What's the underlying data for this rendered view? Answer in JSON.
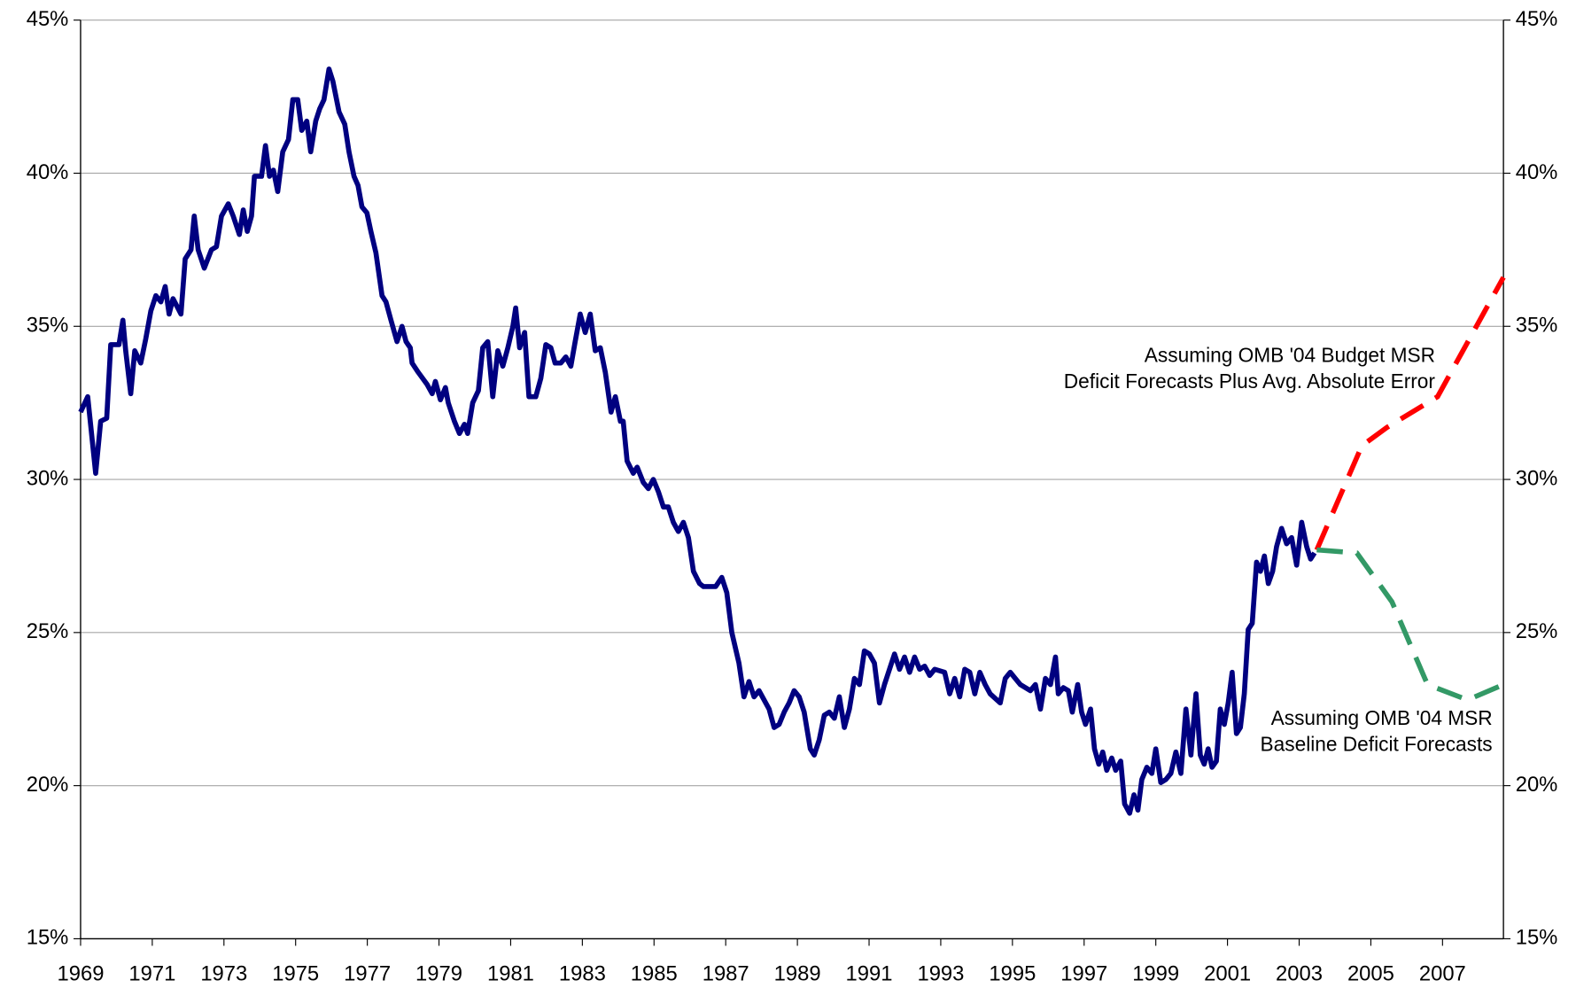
{
  "chart_data": {
    "type": "line",
    "xlim": [
      1969,
      2008.7
    ],
    "xticks": [
      1969,
      1971,
      1973,
      1975,
      1977,
      1979,
      1981,
      1983,
      1985,
      1987,
      1989,
      1991,
      1993,
      1995,
      1997,
      1999,
      2001,
      2003,
      2005,
      2007
    ],
    "ylim": [
      15,
      45
    ],
    "yticks": [
      {
        "value": 15,
        "label": "15%"
      },
      {
        "value": 20,
        "label": "20%"
      },
      {
        "value": 25,
        "label": "25%"
      },
      {
        "value": 30,
        "label": "30%"
      },
      {
        "value": 35,
        "label": "35%"
      },
      {
        "value": 40,
        "label": "40%"
      },
      {
        "value": 45,
        "label": "45%"
      }
    ],
    "y2lim": [
      15,
      45
    ],
    "y2ticks": [
      {
        "value": 15,
        "label": "15%"
      },
      {
        "value": 20,
        "label": "20%"
      },
      {
        "value": 25,
        "label": "25%"
      },
      {
        "value": 30,
        "label": "30%"
      },
      {
        "value": 35,
        "label": "35%"
      },
      {
        "value": 40,
        "label": "40%"
      },
      {
        "value": 45,
        "label": "45%"
      }
    ],
    "grid": true,
    "series": [
      {
        "color": "#000080",
        "dash": false,
        "x": [
          1969.0,
          1969.2,
          1969.42,
          1969.56,
          1969.73,
          1969.84,
          1970.07,
          1970.18,
          1970.26,
          1970.4,
          1970.51,
          1970.68,
          1970.82,
          1970.96,
          1971.1,
          1971.24,
          1971.36,
          1971.47,
          1971.58,
          1971.8,
          1971.92,
          1972.08,
          1972.17,
          1972.28,
          1972.45,
          1972.65,
          1972.79,
          1972.93,
          1973.12,
          1973.26,
          1973.43,
          1973.54,
          1973.65,
          1973.77,
          1973.85,
          1974.05,
          1974.16,
          1974.27,
          1974.38,
          1974.5,
          1974.64,
          1974.8,
          1974.92,
          1975.06,
          1975.17,
          1975.31,
          1975.42,
          1975.56,
          1975.67,
          1975.79,
          1975.93,
          1976.04,
          1976.21,
          1976.37,
          1976.49,
          1976.63,
          1976.74,
          1976.85,
          1976.99,
          1977.1,
          1977.24,
          1977.41,
          1977.52,
          1977.66,
          1977.83,
          1977.97,
          1978.08,
          1978.2,
          1978.25,
          1978.42,
          1978.67,
          1978.81,
          1978.9,
          1979.04,
          1979.18,
          1979.26,
          1979.43,
          1979.57,
          1979.71,
          1979.8,
          1979.94,
          1980.1,
          1980.22,
          1980.36,
          1980.5,
          1980.64,
          1980.78,
          1980.92,
          1981.06,
          1981.14,
          1981.25,
          1981.39,
          1981.51,
          1981.7,
          1981.84,
          1981.98,
          1982.12,
          1982.24,
          1982.4,
          1982.54,
          1982.68,
          1982.8,
          1982.94,
          1983.08,
          1983.22,
          1983.36,
          1983.5,
          1983.64,
          1983.8,
          1983.92,
          1984.06,
          1984.14,
          1984.25,
          1984.42,
          1984.53,
          1984.7,
          1984.84,
          1984.98,
          1985.12,
          1985.26,
          1985.4,
          1985.54,
          1985.68,
          1985.82,
          1985.96,
          1986.1,
          1986.27,
          1986.38,
          1986.72,
          1986.89,
          1987.03,
          1987.17,
          1987.37,
          1987.51,
          1987.65,
          1987.79,
          1987.93,
          1988.07,
          1988.21,
          1988.35,
          1988.49,
          1988.63,
          1988.77,
          1988.91,
          1989.05,
          1989.19,
          1989.36,
          1989.47,
          1989.61,
          1989.75,
          1989.89,
          1990.03,
          1990.17,
          1990.31,
          1990.45,
          1990.59,
          1990.73,
          1990.87,
          1991.01,
          1991.15,
          1991.29,
          1991.43,
          1991.57,
          1991.71,
          1991.85,
          1991.99,
          1992.13,
          1992.27,
          1992.41,
          1992.55,
          1992.69,
          1992.83,
          1993.11,
          1993.25,
          1993.39,
          1993.53,
          1993.67,
          1993.81,
          1993.95,
          1994.09,
          1994.24,
          1994.38,
          1994.66,
          1994.8,
          1994.94,
          1995.08,
          1995.22,
          1995.5,
          1995.64,
          1995.78,
          1995.92,
          1996.06,
          1996.2,
          1996.28,
          1996.42,
          1996.56,
          1996.67,
          1996.82,
          1996.93,
          1997.04,
          1997.18,
          1997.29,
          1997.41,
          1997.52,
          1997.63,
          1997.77,
          1997.88,
          1998.02,
          1998.13,
          1998.27,
          1998.39,
          1998.5,
          1998.61,
          1998.75,
          1998.89,
          1999.0,
          1999.14,
          1999.28,
          1999.42,
          1999.56,
          1999.7,
          1999.84,
          1999.98,
          2000.12,
          2000.24,
          2000.35,
          2000.46,
          2000.57,
          2000.69,
          2000.8,
          2000.91,
          2001.02,
          2001.13,
          2001.25,
          2001.36,
          2001.47,
          2001.58,
          2001.69,
          2001.81,
          2001.92,
          2002.03,
          2002.14,
          2002.26,
          2002.37,
          2002.51,
          2002.65,
          2002.79,
          2002.93,
          2003.07,
          2003.21,
          2003.32,
          2003.43
        ],
        "values": [
          32.2,
          32.7,
          30.2,
          31.9,
          32.0,
          34.4,
          34.4,
          35.2,
          34.2,
          32.8,
          34.2,
          33.8,
          34.6,
          35.5,
          36.0,
          35.8,
          36.3,
          35.4,
          35.9,
          35.4,
          37.2,
          37.5,
          38.6,
          37.5,
          36.9,
          37.5,
          37.6,
          38.6,
          39.0,
          38.6,
          38.0,
          38.8,
          38.1,
          38.6,
          39.9,
          39.9,
          40.9,
          39.9,
          40.1,
          39.4,
          40.7,
          41.1,
          42.4,
          42.4,
          41.4,
          41.7,
          40.7,
          41.7,
          42.1,
          42.4,
          43.4,
          43.0,
          42.0,
          41.6,
          40.7,
          39.9,
          39.6,
          38.9,
          38.7,
          38.1,
          37.4,
          36.0,
          35.8,
          35.2,
          34.5,
          35.0,
          34.5,
          34.3,
          33.8,
          33.5,
          33.1,
          32.8,
          33.2,
          32.6,
          33.0,
          32.5,
          31.9,
          31.5,
          31.8,
          31.5,
          32.5,
          32.9,
          34.3,
          34.5,
          32.7,
          34.2,
          33.7,
          34.3,
          35.0,
          35.6,
          34.3,
          34.8,
          32.7,
          32.7,
          33.3,
          34.4,
          34.3,
          33.8,
          33.8,
          34.0,
          33.7,
          34.5,
          35.4,
          34.8,
          35.4,
          34.2,
          34.3,
          33.5,
          32.2,
          32.7,
          31.9,
          31.9,
          30.6,
          30.2,
          30.4,
          29.9,
          29.7,
          30.0,
          29.6,
          29.1,
          29.1,
          28.6,
          28.3,
          28.6,
          28.1,
          27.0,
          26.6,
          26.5,
          26.5,
          26.8,
          26.3,
          25.0,
          24.0,
          22.9,
          23.4,
          22.9,
          23.1,
          22.8,
          22.5,
          21.9,
          22.0,
          22.4,
          22.7,
          23.1,
          22.9,
          22.4,
          21.2,
          21.0,
          21.5,
          22.3,
          22.4,
          22.2,
          22.9,
          21.9,
          22.5,
          23.5,
          23.3,
          24.4,
          24.3,
          24.0,
          22.7,
          23.3,
          23.8,
          24.3,
          23.8,
          24.2,
          23.7,
          24.2,
          23.8,
          23.9,
          23.6,
          23.8,
          23.7,
          23.0,
          23.5,
          22.9,
          23.8,
          23.7,
          23.0,
          23.7,
          23.3,
          23.0,
          22.7,
          23.5,
          23.7,
          23.5,
          23.3,
          23.1,
          23.3,
          22.5,
          23.5,
          23.3,
          24.2,
          23.0,
          23.2,
          23.1,
          22.4,
          23.3,
          22.4,
          22.0,
          22.5,
          21.2,
          20.7,
          21.1,
          20.5,
          20.9,
          20.5,
          20.8,
          19.4,
          19.1,
          19.7,
          19.2,
          20.2,
          20.6,
          20.4,
          21.2,
          20.1,
          20.2,
          20.4,
          21.1,
          20.4,
          22.5,
          21.0,
          23.0,
          21.0,
          20.7,
          21.2,
          20.6,
          20.8,
          22.5,
          22.0,
          22.7,
          23.7,
          21.7,
          21.9,
          23.0,
          25.1,
          25.3,
          27.3,
          27.0,
          27.5,
          26.6,
          27.0,
          27.8,
          28.4,
          27.9,
          28.1,
          27.2,
          28.6,
          27.8,
          27.4,
          27.6
        ]
      },
      {
        "color": "#ff0000",
        "dash": true,
        "x": [
          2003.49,
          2004.75,
          2005.45,
          2006.86,
          2008.7
        ],
        "values": [
          27.7,
          31.1,
          31.7,
          32.7,
          36.6
        ]
      },
      {
        "color": "#339966",
        "dash": true,
        "x": [
          2003.49,
          2004.61,
          2005.59,
          2006.58,
          2007.7,
          2008.7
        ],
        "values": [
          27.7,
          27.6,
          26.0,
          23.3,
          22.8,
          23.3
        ]
      }
    ],
    "annotations": [
      {
        "lines": [
          "Assuming OMB '04 Budget MSR",
          "Deficit Forecasts Plus Avg. Absolute Error"
        ]
      },
      {
        "lines": [
          "Assuming OMB '04 MSR",
          "Baseline Deficit Forecasts"
        ]
      }
    ]
  }
}
